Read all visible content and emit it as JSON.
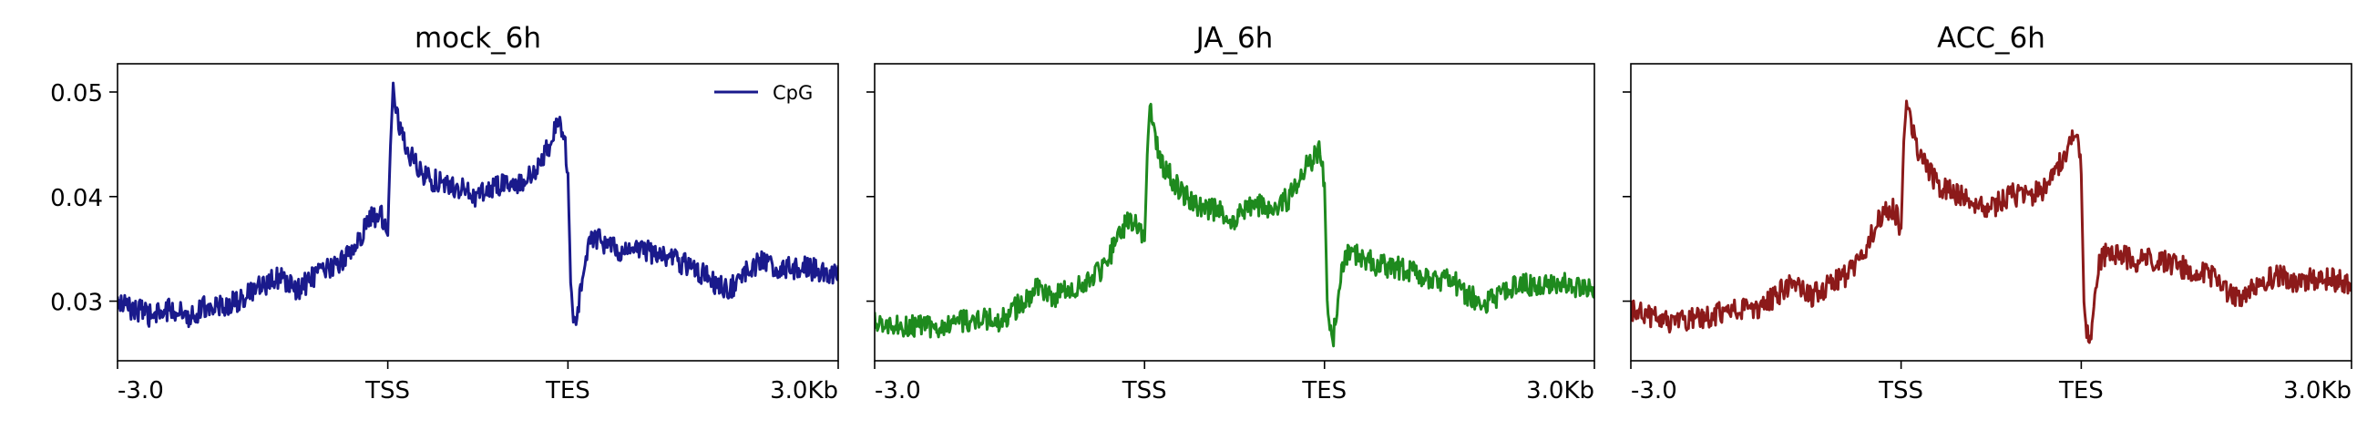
{
  "chart_data": [
    {
      "type": "line",
      "title": "mock_6h",
      "xlabel": "",
      "ylabel": "",
      "ylim": [
        0.0243,
        0.0527
      ],
      "yticks": [
        0.03,
        0.04,
        0.05
      ],
      "ytick_labels": [
        "0.03",
        "0.04",
        "0.05"
      ],
      "xticks": [
        0,
        300,
        500,
        800
      ],
      "xtick_labels": [
        "-3.0",
        "TSS",
        "TES",
        "3.0Kb"
      ],
      "xlim": [
        0,
        800
      ],
      "show_ytick_labels": true,
      "legend": {
        "placement": "upper-right",
        "entries": [
          "CpG"
        ]
      },
      "series": [
        {
          "name": "CpG",
          "color": "#1a1a8c",
          "x": [
            0,
            20,
            40,
            60,
            80,
            100,
            120,
            140,
            160,
            180,
            200,
            220,
            240,
            260,
            270,
            280,
            290,
            295,
            300,
            303,
            306,
            310,
            320,
            340,
            360,
            380,
            400,
            420,
            440,
            460,
            470,
            480,
            490,
            495,
            500,
            503,
            506,
            510,
            520,
            530,
            540,
            560,
            580,
            600,
            620,
            640,
            660,
            680,
            700,
            720,
            740,
            760,
            780,
            800
          ],
          "y": [
            0.0298,
            0.0292,
            0.0285,
            0.0293,
            0.0286,
            0.0296,
            0.0295,
            0.0303,
            0.0314,
            0.0323,
            0.031,
            0.0325,
            0.0332,
            0.0348,
            0.0362,
            0.0378,
            0.0384,
            0.038,
            0.0365,
            0.045,
            0.051,
            0.048,
            0.0445,
            0.042,
            0.0412,
            0.0408,
            0.04,
            0.0412,
            0.041,
            0.042,
            0.0432,
            0.045,
            0.047,
            0.0465,
            0.042,
            0.032,
            0.0278,
            0.0282,
            0.0348,
            0.0362,
            0.0355,
            0.0347,
            0.035,
            0.0345,
            0.0338,
            0.0334,
            0.0318,
            0.0312,
            0.0332,
            0.0338,
            0.033,
            0.0334,
            0.0328,
            0.0327
          ]
        }
      ]
    },
    {
      "type": "line",
      "title": "JA_6h",
      "xlabel": "",
      "ylabel": "",
      "ylim": [
        0.0243,
        0.0527
      ],
      "yticks": [
        0.03,
        0.04,
        0.05
      ],
      "ytick_labels": [
        "0.03",
        "0.04",
        "0.05"
      ],
      "xticks": [
        0,
        300,
        500,
        800
      ],
      "xtick_labels": [
        "-3.0",
        "TSS",
        "TES",
        "3.0Kb"
      ],
      "xlim": [
        0,
        800
      ],
      "show_ytick_labels": false,
      "series": [
        {
          "color": "#1e8a1e",
          "x": [
            0,
            20,
            40,
            60,
            80,
            100,
            120,
            140,
            160,
            180,
            200,
            220,
            240,
            260,
            270,
            280,
            290,
            295,
            300,
            303,
            306,
            310,
            320,
            340,
            360,
            380,
            400,
            420,
            440,
            460,
            470,
            480,
            490,
            495,
            500,
            503,
            506,
            510,
            520,
            530,
            540,
            560,
            580,
            600,
            620,
            640,
            660,
            680,
            700,
            720,
            740,
            760,
            780,
            800
          ],
          "y": [
            0.0282,
            0.0278,
            0.0276,
            0.0275,
            0.0275,
            0.0282,
            0.0284,
            0.028,
            0.0296,
            0.0312,
            0.0305,
            0.0312,
            0.0318,
            0.034,
            0.0362,
            0.0376,
            0.0378,
            0.0372,
            0.0358,
            0.044,
            0.0488,
            0.0462,
            0.043,
            0.0405,
            0.0392,
            0.0386,
            0.0378,
            0.0392,
            0.039,
            0.0398,
            0.0412,
            0.0428,
            0.044,
            0.0445,
            0.0412,
            0.03,
            0.027,
            0.0265,
            0.0335,
            0.0348,
            0.0342,
            0.0334,
            0.0332,
            0.0328,
            0.032,
            0.0322,
            0.0305,
            0.0298,
            0.0308,
            0.0318,
            0.0312,
            0.0318,
            0.0314,
            0.0311
          ]
        }
      ]
    },
    {
      "type": "line",
      "title": "ACC_6h",
      "xlabel": "",
      "ylabel": "",
      "ylim": [
        0.0243,
        0.0527
      ],
      "yticks": [
        0.03,
        0.04,
        0.05
      ],
      "ytick_labels": [
        "0.03",
        "0.04",
        "0.05"
      ],
      "xticks": [
        0,
        300,
        500,
        800
      ],
      "xtick_labels": [
        "-3.0",
        "TSS",
        "TES",
        "3.0Kb"
      ],
      "xlim": [
        0,
        800
      ],
      "show_ytick_labels": false,
      "series": [
        {
          "color": "#8c1a1a",
          "x": [
            0,
            20,
            40,
            60,
            80,
            100,
            120,
            140,
            160,
            180,
            200,
            220,
            240,
            260,
            270,
            280,
            290,
            295,
            300,
            303,
            306,
            310,
            320,
            340,
            360,
            380,
            400,
            420,
            440,
            460,
            470,
            480,
            490,
            495,
            500,
            503,
            506,
            510,
            520,
            530,
            540,
            560,
            580,
            600,
            620,
            640,
            660,
            680,
            700,
            720,
            740,
            760,
            780,
            800
          ],
          "y": [
            0.0292,
            0.0286,
            0.028,
            0.0283,
            0.0282,
            0.0289,
            0.0292,
            0.0292,
            0.0305,
            0.0318,
            0.0304,
            0.0316,
            0.0324,
            0.0348,
            0.0368,
            0.0384,
            0.0388,
            0.0382,
            0.0368,
            0.0452,
            0.0493,
            0.047,
            0.0438,
            0.0412,
            0.0402,
            0.0395,
            0.0388,
            0.0402,
            0.04,
            0.0408,
            0.042,
            0.0438,
            0.0455,
            0.0458,
            0.0422,
            0.03,
            0.0268,
            0.0262,
            0.0335,
            0.035,
            0.0345,
            0.0338,
            0.034,
            0.0336,
            0.033,
            0.0328,
            0.031,
            0.0303,
            0.032,
            0.0325,
            0.0318,
            0.0322,
            0.032,
            0.0318
          ]
        }
      ]
    }
  ]
}
